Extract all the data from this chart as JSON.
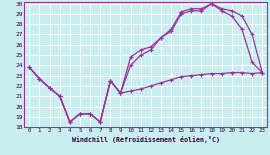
{
  "background_color": "#c8eef0",
  "grid_color": "#ffffff",
  "line_color": "#993399",
  "xlim": [
    -0.5,
    23.5
  ],
  "ylim": [
    18,
    30.2
  ],
  "yticks": [
    18,
    19,
    20,
    21,
    22,
    23,
    24,
    25,
    26,
    27,
    28,
    29,
    30
  ],
  "xticks": [
    0,
    1,
    2,
    3,
    4,
    5,
    6,
    7,
    8,
    9,
    10,
    11,
    12,
    13,
    14,
    15,
    16,
    17,
    18,
    19,
    20,
    21,
    22,
    23
  ],
  "xlabel": "Windchill (Refroidissement éolien,°C)",
  "line1_x": [
    0,
    1,
    2,
    3,
    4,
    5,
    6,
    7,
    8,
    9,
    10,
    11,
    12,
    13,
    14,
    15,
    16,
    17,
    18,
    19,
    20,
    21,
    22,
    23
  ],
  "line1_y": [
    23.8,
    22.7,
    21.8,
    21.0,
    18.5,
    19.3,
    19.3,
    18.5,
    22.5,
    21.3,
    21.5,
    21.7,
    22.0,
    22.3,
    22.6,
    22.9,
    23.0,
    23.1,
    23.2,
    23.2,
    23.3,
    23.3,
    23.2,
    23.3
  ],
  "line2_x": [
    0,
    1,
    2,
    3,
    4,
    5,
    6,
    7,
    8,
    9,
    10,
    11,
    12,
    13,
    14,
    15,
    16,
    17,
    18,
    19,
    20,
    21,
    22,
    23
  ],
  "line2_y": [
    23.8,
    22.7,
    21.8,
    21.0,
    18.5,
    19.3,
    19.3,
    18.5,
    22.5,
    21.3,
    24.0,
    25.0,
    25.5,
    26.7,
    27.3,
    29.0,
    29.3,
    29.3,
    30.0,
    29.3,
    28.8,
    27.5,
    24.3,
    23.3
  ],
  "line3_x": [
    0,
    1,
    2,
    3,
    4,
    5,
    6,
    7,
    8,
    9,
    10,
    11,
    12,
    13,
    14,
    15,
    16,
    17,
    18,
    19,
    20,
    21,
    22,
    23
  ],
  "line3_y": [
    23.8,
    22.7,
    21.8,
    21.0,
    18.5,
    19.3,
    19.3,
    18.5,
    22.5,
    21.3,
    24.8,
    25.5,
    25.8,
    26.7,
    27.5,
    29.2,
    29.5,
    29.5,
    30.0,
    29.5,
    29.3,
    28.8,
    27.0,
    23.3
  ]
}
